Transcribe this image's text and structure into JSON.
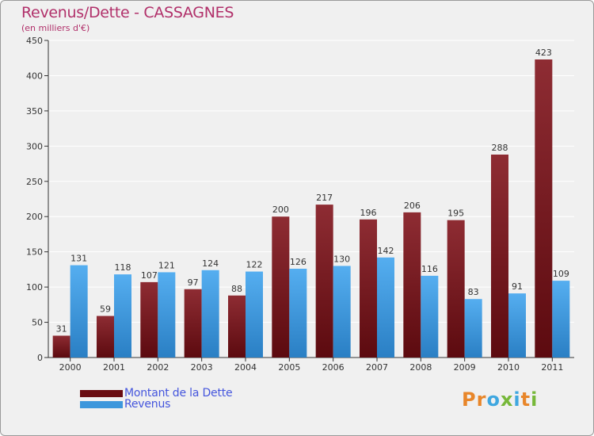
{
  "chart_data": {
    "type": "bar",
    "title": "Revenus/Dette - CASSAGNES",
    "subtitle": "(en milliers d'€)",
    "xlabel": "",
    "ylabel": "",
    "ylim": [
      0,
      450
    ],
    "yticks": [
      0,
      50,
      100,
      150,
      200,
      250,
      300,
      350,
      400,
      450
    ],
    "grid": true,
    "legend_position": "bottom-left",
    "categories": [
      "2000",
      "2001",
      "2002",
      "2003",
      "2004",
      "2005",
      "2006",
      "2007",
      "2008",
      "2009",
      "2010",
      "2011"
    ],
    "series": [
      {
        "name": "Montant de la Dette",
        "color": "#7a1c22",
        "values": [
          31,
          59,
          107,
          97,
          88,
          200,
          217,
          196,
          206,
          195,
          288,
          423
        ]
      },
      {
        "name": "Revenus",
        "color": "#3d97dc",
        "values": [
          131,
          118,
          121,
          124,
          122,
          126,
          130,
          142,
          116,
          83,
          91,
          109
        ]
      }
    ]
  },
  "legend": {
    "dette_label": "Montant de la Dette",
    "revenus_label": "Revenus",
    "dette_color": "#6a0d12",
    "revenus_color": "#3d97dc"
  },
  "logo": {
    "letters": [
      "P",
      "r",
      "o",
      "x",
      "i",
      "t",
      "i"
    ],
    "colors": [
      "#e8862a",
      "#e8862a",
      "#3fa7e0",
      "#77b83a",
      "#3fa7e0",
      "#e8862a",
      "#77b83a"
    ]
  }
}
